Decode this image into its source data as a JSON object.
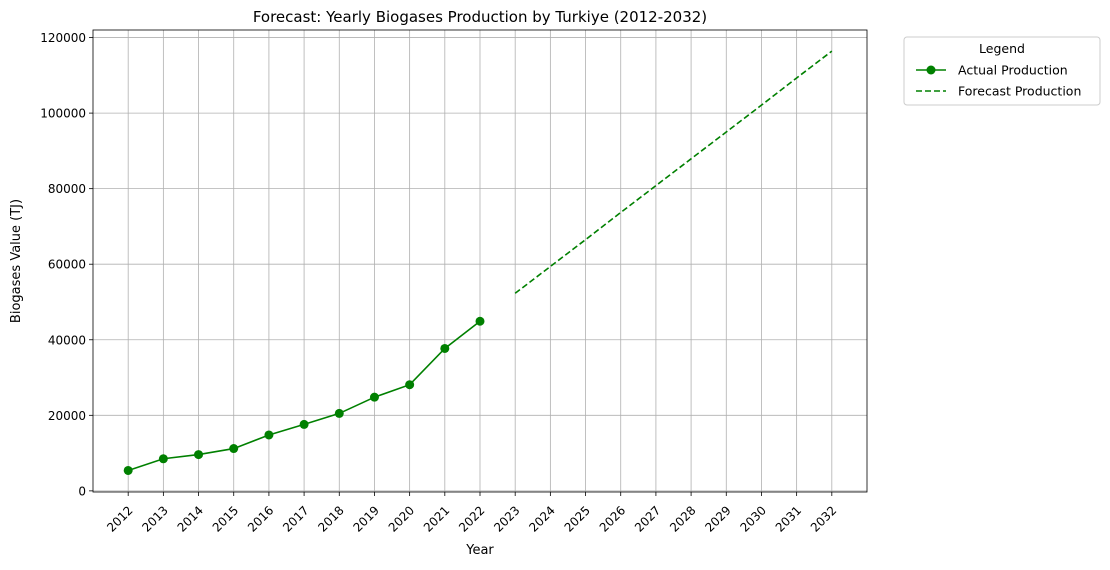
{
  "chart_data": {
    "type": "line",
    "title": "Forecast: Yearly Biogases Production by Turkiye (2012-2032)",
    "xlabel": "Year",
    "ylabel": "Biogases Value (TJ)",
    "x_ticks": [
      "2012",
      "2013",
      "2014",
      "2015",
      "2016",
      "2017",
      "2018",
      "2019",
      "2020",
      "2021",
      "2022",
      "2023",
      "2024",
      "2025",
      "2026",
      "2027",
      "2028",
      "2029",
      "2030",
      "2031",
      "2032"
    ],
    "y_ticks": [
      "0",
      "20000",
      "40000",
      "60000",
      "80000",
      "100000",
      "120000"
    ],
    "xlim": [
      2011,
      2033
    ],
    "ylim": [
      -300,
      122000
    ],
    "grid": true,
    "legend": {
      "title": "Legend",
      "placement": "outside-top-right"
    },
    "series": [
      {
        "name": "Actual Production",
        "style": "solid-with-markers",
        "color": "#008000",
        "x": [
          2012,
          2013,
          2014,
          2015,
          2016,
          2017,
          2018,
          2019,
          2020,
          2021,
          2022
        ],
        "y": [
          5400,
          8500,
          9600,
          11200,
          14800,
          17600,
          20500,
          24800,
          28100,
          37700,
          44900
        ]
      },
      {
        "name": "Forecast Production",
        "style": "dashed",
        "color": "#008000",
        "x": [
          2023,
          2024,
          2025,
          2026,
          2027,
          2028,
          2029,
          2030,
          2031,
          2032
        ],
        "y": [
          52300,
          59400,
          66500,
          73700,
          80800,
          87900,
          95000,
          102100,
          109300,
          116400
        ]
      }
    ]
  }
}
